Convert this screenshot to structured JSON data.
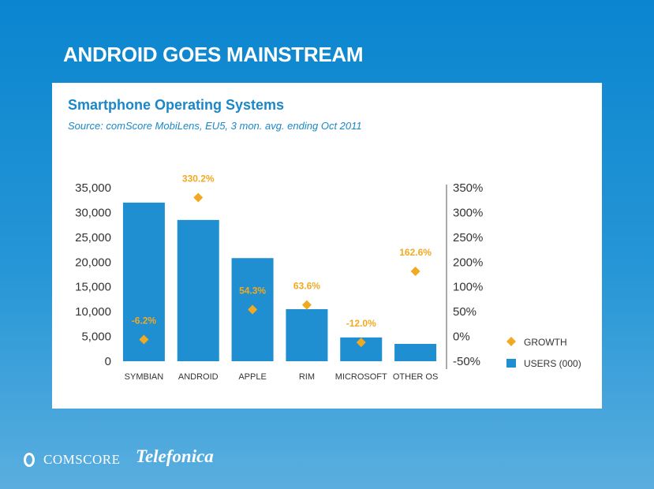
{
  "slide": {
    "title": "ANDROID GOES MAINSTREAM"
  },
  "chart": {
    "heading": "Smartphone Operating Systems",
    "source": "Source: comScore MobiLens, EU5, 3 mon. avg. ending Oct 2011"
  },
  "chart_data": {
    "type": "bar",
    "title": "Smartphone Operating Systems",
    "subtitle": "Source: comScore MobiLens, EU5, 3 mon. avg. ending Oct 2011",
    "categories": [
      "SYMBIAN",
      "ANDROID",
      "APPLE",
      "RIM",
      "MICROSOFT",
      "OTHER OS"
    ],
    "series": [
      {
        "name": "USERS (000)",
        "type": "bar",
        "axis": "left",
        "color": "#1f8fd1",
        "values": [
          32000,
          28500,
          20800,
          10500,
          4800,
          3500
        ]
      },
      {
        "name": "GROWTH",
        "type": "scatter",
        "axis": "right",
        "color": "#f2a922",
        "values": [
          -6.2,
          330.2,
          54.3,
          63.6,
          -12.0,
          162.6
        ],
        "labels": [
          "-6.2%",
          "330.2%",
          "54.3%",
          "63.6%",
          "-12.0%",
          "162.6%"
        ]
      }
    ],
    "left_axis": {
      "range": [
        0,
        35000
      ],
      "ticks": [
        "0",
        "5,000",
        "10,000",
        "15,000",
        "20,000",
        "25,000",
        "30,000",
        "35,000"
      ]
    },
    "right_axis": {
      "ticks": [
        "-50%",
        "0%",
        "50%",
        "100%",
        "200%",
        "250%",
        "300%",
        "350%"
      ],
      "tick_values": [
        -50,
        0,
        50,
        100,
        200,
        250,
        300,
        350
      ]
    },
    "legend_position": "right",
    "grid": false
  },
  "logos": {
    "comscore": "COMSCORE",
    "telefonica": "Telefonica"
  }
}
